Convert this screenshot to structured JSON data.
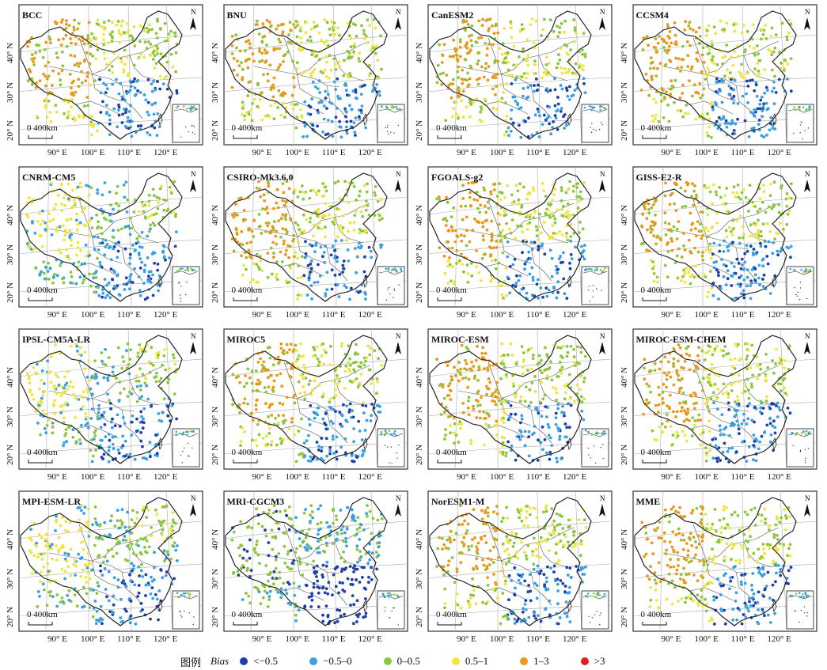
{
  "figure": {
    "models": [
      "BCC",
      "BNU",
      "CanESM2",
      "CCSM4",
      "CNRM-CM5",
      "CSIRO-Mk3.6.0",
      "FGOALS-g2",
      "GISS-E2-R",
      "IPSL-CM5A-LR",
      "MIROC5",
      "MIROC-ESM",
      "MIROC-ESM-CHEM",
      "MPI-ESM-LR",
      "MRI-CGCM3",
      "NorESM1-M",
      "MME"
    ],
    "lat_labels": [
      "40° N",
      "30° N",
      "20° N"
    ],
    "lon_labels": [
      "90° E",
      "100° E",
      "110° E",
      "120° E"
    ],
    "scale_label": "0 400km",
    "north_label": "N"
  },
  "legend": {
    "title": "图例",
    "variable": "Bias",
    "classes": [
      {
        "label": "<−0.5",
        "color": "#1f3fa8"
      },
      {
        "label": "−0.5–0",
        "color": "#3aa0e0"
      },
      {
        "label": "0–0.5",
        "color": "#8cc63f"
      },
      {
        "label": "0.5–1",
        "color": "#f0e442"
      },
      {
        "label": "1–3",
        "color": "#e69a1c"
      },
      {
        "label": ">3",
        "color": "#e02020"
      }
    ]
  }
}
